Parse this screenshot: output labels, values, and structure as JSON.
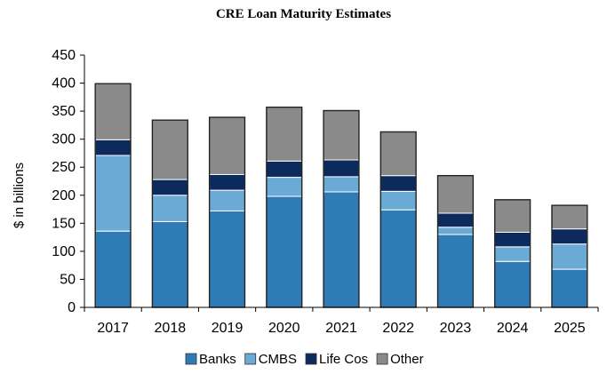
{
  "chart_data": {
    "type": "bar",
    "stacked": true,
    "title": "CRE Loan Maturity Estimates",
    "xlabel": "",
    "ylabel": "$ in billions",
    "ylim": [
      0,
      450
    ],
    "yticks": [
      0,
      50,
      100,
      150,
      200,
      250,
      300,
      350,
      400,
      450
    ],
    "grid": false,
    "legend_position": "bottom",
    "categories": [
      "2017",
      "2018",
      "2019",
      "2020",
      "2021",
      "2022",
      "2023",
      "2024",
      "2025"
    ],
    "series": [
      {
        "name": "Banks",
        "color": "#2f7bb6",
        "values": [
          136,
          153,
          172,
          198,
          206,
          174,
          130,
          82,
          68
        ]
      },
      {
        "name": "CMBS",
        "color": "#6aaad4",
        "values": [
          135,
          47,
          37,
          34,
          27,
          33,
          13,
          26,
          45
        ]
      },
      {
        "name": "Life Cos",
        "color": "#0d2a5c",
        "values": [
          28,
          28,
          28,
          29,
          30,
          28,
          25,
          26,
          27
        ]
      },
      {
        "name": "Other",
        "color": "#8a8a8a",
        "values": [
          100,
          106,
          102,
          96,
          88,
          78,
          67,
          58,
          42
        ]
      }
    ]
  }
}
